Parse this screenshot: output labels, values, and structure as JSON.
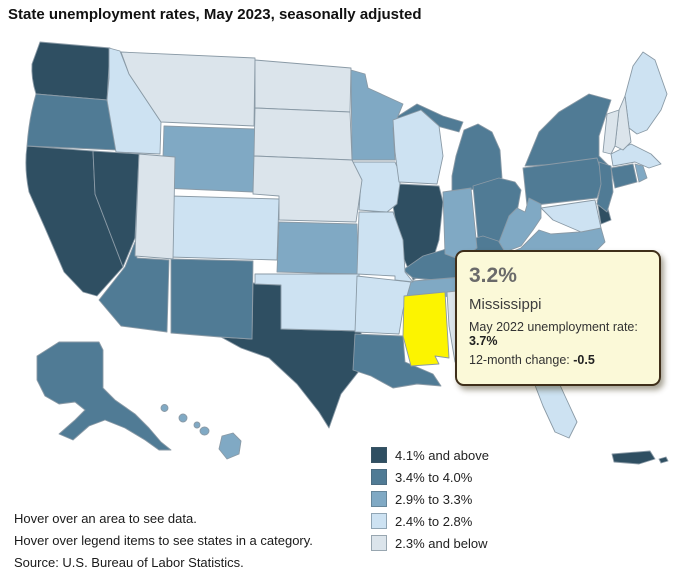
{
  "title": "State unemployment rates, May 2023, seasonally adjusted",
  "tooltip": {
    "value": "3.2%",
    "state": "Mississippi",
    "prev_label": "May 2022 unemployment rate:",
    "prev_value": "3.7%",
    "change_label": "12-month change:",
    "change_value": "-0.5"
  },
  "legend": {
    "items": [
      {
        "label": "4.1% and above",
        "color": "#2F4F62"
      },
      {
        "label": "3.4% to 4.0%",
        "color": "#507B95"
      },
      {
        "label": "2.9% to 3.3%",
        "color": "#80A9C4"
      },
      {
        "label": "2.4% to 2.8%",
        "color": "#CDE2F2"
      },
      {
        "label": "2.3% and below",
        "color": "#DBE4EB"
      }
    ]
  },
  "notes": [
    "Hover over an area to see data.",
    "Hover over legend items to see states in a category.",
    "Source: U.S. Bureau of Labor Statistics."
  ],
  "colors": {
    "highlight": "#FCF400",
    "stroke": "#8A9AA6",
    "background": "#FFFFFF"
  },
  "chart_data": {
    "type": "choropleth",
    "title": "State unemployment rates, May 2023, seasonally adjusted",
    "unit": "unemployment rate (%), seasonally adjusted",
    "categories": [
      "4.1% and above",
      "3.4% to 4.0%",
      "2.9% to 3.3%",
      "2.4% to 2.8%",
      "2.3% and below"
    ],
    "highlighted_state": {
      "id": "MS",
      "name": "Mississippi",
      "rate": "3.2%",
      "may_2022_rate": "3.7%",
      "twelve_month_change": "-0.5"
    },
    "states": [
      {
        "id": "WA",
        "category": 0
      },
      {
        "id": "CA",
        "category": 0
      },
      {
        "id": "NV",
        "category": 0
      },
      {
        "id": "IL",
        "category": 0
      },
      {
        "id": "TX",
        "category": 0
      },
      {
        "id": "DE",
        "category": 0
      },
      {
        "id": "DC",
        "category": 0
      },
      {
        "id": "PR",
        "category": 0
      },
      {
        "id": "OR",
        "category": 1
      },
      {
        "id": "AZ",
        "category": 1
      },
      {
        "id": "NM",
        "category": 1
      },
      {
        "id": "AK",
        "category": 1
      },
      {
        "id": "MI",
        "category": 1
      },
      {
        "id": "OH",
        "category": 1
      },
      {
        "id": "KY",
        "category": 1
      },
      {
        "id": "LA",
        "category": 1
      },
      {
        "id": "NY",
        "category": 1
      },
      {
        "id": "PA",
        "category": 1
      },
      {
        "id": "NJ",
        "category": 1
      },
      {
        "id": "CT",
        "category": 1
      },
      {
        "id": "NC",
        "category": 1
      },
      {
        "id": "WY",
        "category": 2
      },
      {
        "id": "KS",
        "category": 2
      },
      {
        "id": "MN",
        "category": 2
      },
      {
        "id": "IN",
        "category": 2
      },
      {
        "id": "TN",
        "category": 2
      },
      {
        "id": "WV",
        "category": 2
      },
      {
        "id": "VA",
        "category": 2
      },
      {
        "id": "HI",
        "category": 2
      },
      {
        "id": "RI",
        "category": 2
      },
      {
        "id": "GA",
        "category": 2
      },
      {
        "id": "SC",
        "category": 2
      },
      {
        "id": "ID",
        "category": 3
      },
      {
        "id": "CO",
        "category": 3
      },
      {
        "id": "OK",
        "category": 3
      },
      {
        "id": "AR",
        "category": 3
      },
      {
        "id": "MO",
        "category": 3
      },
      {
        "id": "IA",
        "category": 3
      },
      {
        "id": "WI",
        "category": 3
      },
      {
        "id": "FL",
        "category": 3
      },
      {
        "id": "ME",
        "category": 3
      },
      {
        "id": "MA",
        "category": 3
      },
      {
        "id": "MD",
        "category": 3
      },
      {
        "id": "MT",
        "category": 4
      },
      {
        "id": "ND",
        "category": 4
      },
      {
        "id": "SD",
        "category": 4
      },
      {
        "id": "NE",
        "category": 4
      },
      {
        "id": "UT",
        "category": 4
      },
      {
        "id": "NH",
        "category": 4
      },
      {
        "id": "VT",
        "category": 4
      },
      {
        "id": "AL",
        "category": 4
      },
      {
        "id": "MS",
        "category": 2,
        "highlighted": true
      }
    ]
  }
}
